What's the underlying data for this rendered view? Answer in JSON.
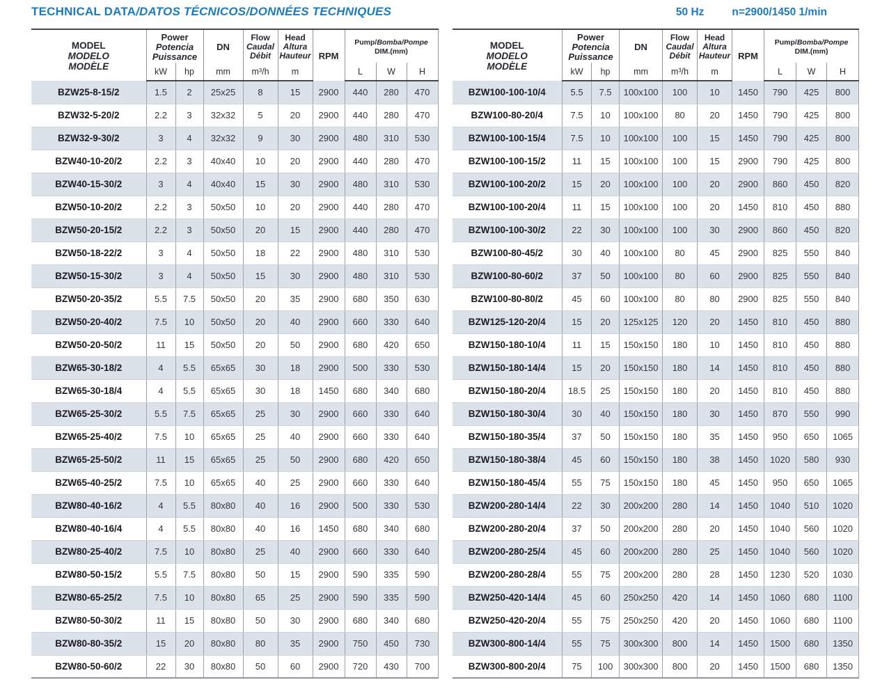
{
  "header": {
    "title_main": "TECHNICAL DATA",
    "title_rest": "/DATOS TÉCNICOS/DONNÉES TECHNIQUES",
    "frequency": "50 Hz",
    "speed": "n=2900/1450 1/min"
  },
  "colors": {
    "accent_blue": "#1c7bbb",
    "row_shade": "#dce2e9",
    "header_rule_dark": "#45454d"
  },
  "column_header": {
    "model_lines": [
      "MODEL",
      "MODELO",
      "MODÈLE"
    ],
    "power_lines": [
      "Power",
      "Potencia",
      "Puissance"
    ],
    "power_units": [
      "kW",
      "hp"
    ],
    "dn_label": "DN",
    "dn_unit": "mm",
    "flow_lines": [
      "Flow",
      "Caudal",
      "Débit"
    ],
    "flow_unit": "m³/h",
    "head_lines": [
      "Head",
      "Altura",
      "Hauteur"
    ],
    "head_unit": "m",
    "rpm_label": "RPM",
    "dim_title_main": "Pump/",
    "dim_title_italic": "Bomba/Pompe",
    "dim_subtitle": "DIM.(mm)",
    "dim_units": [
      "L",
      "W",
      "H"
    ]
  },
  "columns": [
    "model",
    "power_kW",
    "power_hp",
    "DN_mm",
    "flow_m3h",
    "head_m",
    "rpm",
    "dim_L",
    "dim_W",
    "dim_H"
  ],
  "tables": {
    "left": {
      "rows": [
        [
          "BZW25-8-15/2",
          "1.5",
          "2",
          "25x25",
          "8",
          "15",
          "2900",
          "440",
          "280",
          "470"
        ],
        [
          "BZW32-5-20/2",
          "2.2",
          "3",
          "32x32",
          "5",
          "20",
          "2900",
          "440",
          "280",
          "470"
        ],
        [
          "BZW32-9-30/2",
          "3",
          "4",
          "32x32",
          "9",
          "30",
          "2900",
          "480",
          "310",
          "530"
        ],
        [
          "BZW40-10-20/2",
          "2.2",
          "3",
          "40x40",
          "10",
          "20",
          "2900",
          "440",
          "280",
          "470"
        ],
        [
          "BZW40-15-30/2",
          "3",
          "4",
          "40x40",
          "15",
          "30",
          "2900",
          "480",
          "310",
          "530"
        ],
        [
          "BZW50-10-20/2",
          "2.2",
          "3",
          "50x50",
          "10",
          "20",
          "2900",
          "440",
          "280",
          "470"
        ],
        [
          "BZW50-20-15/2",
          "2.2",
          "3",
          "50x50",
          "20",
          "15",
          "2900",
          "440",
          "280",
          "470"
        ],
        [
          "BZW50-18-22/2",
          "3",
          "4",
          "50x50",
          "18",
          "22",
          "2900",
          "480",
          "310",
          "530"
        ],
        [
          "BZW50-15-30/2",
          "3",
          "4",
          "50x50",
          "15",
          "30",
          "2900",
          "480",
          "310",
          "530"
        ],
        [
          "BZW50-20-35/2",
          "5.5",
          "7.5",
          "50x50",
          "20",
          "35",
          "2900",
          "680",
          "350",
          "630"
        ],
        [
          "BZW50-20-40/2",
          "7.5",
          "10",
          "50x50",
          "20",
          "40",
          "2900",
          "660",
          "330",
          "640"
        ],
        [
          "BZW50-20-50/2",
          "11",
          "15",
          "50x50",
          "20",
          "50",
          "2900",
          "680",
          "420",
          "650"
        ],
        [
          "BZW65-30-18/2",
          "4",
          "5.5",
          "65x65",
          "30",
          "18",
          "2900",
          "500",
          "330",
          "530"
        ],
        [
          "BZW65-30-18/4",
          "4",
          "5.5",
          "65x65",
          "30",
          "18",
          "1450",
          "680",
          "340",
          "680"
        ],
        [
          "BZW65-25-30/2",
          "5.5",
          "7.5",
          "65x65",
          "25",
          "30",
          "2900",
          "660",
          "330",
          "640"
        ],
        [
          "BZW65-25-40/2",
          "7.5",
          "10",
          "65x65",
          "25",
          "40",
          "2900",
          "660",
          "330",
          "640"
        ],
        [
          "BZW65-25-50/2",
          "11",
          "15",
          "65x65",
          "25",
          "50",
          "2900",
          "680",
          "420",
          "650"
        ],
        [
          "BZW65-40-25/2",
          "7.5",
          "10",
          "65x65",
          "40",
          "25",
          "2900",
          "660",
          "330",
          "640"
        ],
        [
          "BZW80-40-16/2",
          "4",
          "5.5",
          "80x80",
          "40",
          "16",
          "2900",
          "500",
          "330",
          "530"
        ],
        [
          "BZW80-40-16/4",
          "4",
          "5.5",
          "80x80",
          "40",
          "16",
          "1450",
          "680",
          "340",
          "680"
        ],
        [
          "BZW80-25-40/2",
          "7.5",
          "10",
          "80x80",
          "25",
          "40",
          "2900",
          "660",
          "330",
          "640"
        ],
        [
          "BZW80-50-15/2",
          "5.5",
          "7.5",
          "80x80",
          "50",
          "15",
          "2900",
          "590",
          "335",
          "590"
        ],
        [
          "BZW80-65-25/2",
          "7.5",
          "10",
          "80x80",
          "65",
          "25",
          "2900",
          "590",
          "335",
          "590"
        ],
        [
          "BZW80-50-30/2",
          "11",
          "15",
          "80x80",
          "50",
          "30",
          "2900",
          "680",
          "340",
          "680"
        ],
        [
          "BZW80-80-35/2",
          "15",
          "20",
          "80x80",
          "80",
          "35",
          "2900",
          "750",
          "450",
          "730"
        ],
        [
          "BZW80-50-60/2",
          "22",
          "30",
          "80x80",
          "50",
          "60",
          "2900",
          "720",
          "430",
          "700"
        ]
      ]
    },
    "right": {
      "rows": [
        [
          "BZW100-100-10/4",
          "5.5",
          "7.5",
          "100x100",
          "100",
          "10",
          "1450",
          "790",
          "425",
          "800"
        ],
        [
          "BZW100-80-20/4",
          "7.5",
          "10",
          "100x100",
          "80",
          "20",
          "1450",
          "790",
          "425",
          "800"
        ],
        [
          "BZW100-100-15/4",
          "7.5",
          "10",
          "100x100",
          "100",
          "15",
          "1450",
          "790",
          "425",
          "800"
        ],
        [
          "BZW100-100-15/2",
          "11",
          "15",
          "100x100",
          "100",
          "15",
          "2900",
          "790",
          "425",
          "800"
        ],
        [
          "BZW100-100-20/2",
          "15",
          "20",
          "100x100",
          "100",
          "20",
          "2900",
          "860",
          "450",
          "820"
        ],
        [
          "BZW100-100-20/4",
          "11",
          "15",
          "100x100",
          "100",
          "20",
          "1450",
          "810",
          "450",
          "880"
        ],
        [
          "BZW100-100-30/2",
          "22",
          "30",
          "100x100",
          "100",
          "30",
          "2900",
          "860",
          "450",
          "820"
        ],
        [
          "BZW100-80-45/2",
          "30",
          "40",
          "100x100",
          "80",
          "45",
          "2900",
          "825",
          "550",
          "840"
        ],
        [
          "BZW100-80-60/2",
          "37",
          "50",
          "100x100",
          "80",
          "60",
          "2900",
          "825",
          "550",
          "840"
        ],
        [
          "BZW100-80-80/2",
          "45",
          "60",
          "100x100",
          "80",
          "80",
          "2900",
          "825",
          "550",
          "840"
        ],
        [
          "BZW125-120-20/4",
          "15",
          "20",
          "125x125",
          "120",
          "20",
          "1450",
          "810",
          "450",
          "880"
        ],
        [
          "BZW150-180-10/4",
          "11",
          "15",
          "150x150",
          "180",
          "10",
          "1450",
          "810",
          "450",
          "880"
        ],
        [
          "BZW150-180-14/4",
          "15",
          "20",
          "150x150",
          "180",
          "14",
          "1450",
          "810",
          "450",
          "880"
        ],
        [
          "BZW150-180-20/4",
          "18.5",
          "25",
          "150x150",
          "180",
          "20",
          "1450",
          "810",
          "450",
          "880"
        ],
        [
          "BZW150-180-30/4",
          "30",
          "40",
          "150x150",
          "180",
          "30",
          "1450",
          "870",
          "550",
          "990"
        ],
        [
          "BZW150-180-35/4",
          "37",
          "50",
          "150x150",
          "180",
          "35",
          "1450",
          "950",
          "650",
          "1065"
        ],
        [
          "BZW150-180-38/4",
          "45",
          "60",
          "150x150",
          "180",
          "38",
          "1450",
          "1020",
          "580",
          "930"
        ],
        [
          "BZW150-180-45/4",
          "55",
          "75",
          "150x150",
          "180",
          "45",
          "1450",
          "950",
          "650",
          "1065"
        ],
        [
          "BZW200-280-14/4",
          "22",
          "30",
          "200x200",
          "280",
          "14",
          "1450",
          "1040",
          "510",
          "1020"
        ],
        [
          "BZW200-280-20/4",
          "37",
          "50",
          "200x200",
          "280",
          "20",
          "1450",
          "1040",
          "560",
          "1020"
        ],
        [
          "BZW200-280-25/4",
          "45",
          "60",
          "200x200",
          "280",
          "25",
          "1450",
          "1040",
          "560",
          "1020"
        ],
        [
          "BZW200-280-28/4",
          "55",
          "75",
          "200x200",
          "280",
          "28",
          "1450",
          "1230",
          "520",
          "1030"
        ],
        [
          "BZW250-420-14/4",
          "45",
          "60",
          "250x250",
          "420",
          "14",
          "1450",
          "1060",
          "680",
          "1100"
        ],
        [
          "BZW250-420-20/4",
          "55",
          "75",
          "250x250",
          "420",
          "20",
          "1450",
          "1060",
          "680",
          "1100"
        ],
        [
          "BZW300-800-14/4",
          "55",
          "75",
          "300x300",
          "800",
          "14",
          "1450",
          "1500",
          "680",
          "1350"
        ],
        [
          "BZW300-800-20/4",
          "75",
          "100",
          "300x300",
          "800",
          "20",
          "1450",
          "1500",
          "680",
          "1350"
        ]
      ]
    }
  }
}
